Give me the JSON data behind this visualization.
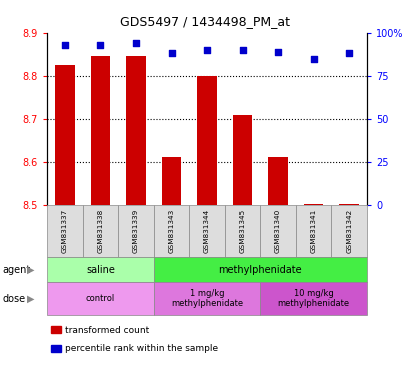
{
  "title": "GDS5497 / 1434498_PM_at",
  "samples": [
    "GSM831337",
    "GSM831338",
    "GSM831339",
    "GSM831343",
    "GSM831344",
    "GSM831345",
    "GSM831340",
    "GSM831341",
    "GSM831342"
  ],
  "red_values": [
    8.825,
    8.845,
    8.845,
    8.612,
    8.8,
    8.71,
    8.612,
    8.503,
    8.503
  ],
  "blue_values": [
    93,
    93,
    94,
    88,
    90,
    90,
    89,
    85,
    88
  ],
  "ylim_left": [
    8.5,
    8.9
  ],
  "ylim_right": [
    0,
    100
  ],
  "yticks_left": [
    8.5,
    8.6,
    8.7,
    8.8,
    8.9
  ],
  "ytick_labels_right": [
    "0",
    "25",
    "50",
    "75",
    "100%"
  ],
  "dotted_lines": [
    8.6,
    8.7,
    8.8
  ],
  "bar_color": "#cc0000",
  "dot_color": "#0000cc",
  "agent_groups": [
    {
      "label": "saline",
      "start": 0,
      "end": 3,
      "color": "#aaffaa"
    },
    {
      "label": "methylphenidate",
      "start": 3,
      "end": 9,
      "color": "#44ee44"
    }
  ],
  "dose_groups": [
    {
      "label": "control",
      "start": 0,
      "end": 3,
      "color": "#ee99ee"
    },
    {
      "label": "1 mg/kg\nmethylphenidate",
      "start": 3,
      "end": 6,
      "color": "#dd77dd"
    },
    {
      "label": "10 mg/kg\nmethylphenidate",
      "start": 6,
      "end": 9,
      "color": "#cc55cc"
    }
  ],
  "legend_items": [
    {
      "label": "transformed count",
      "color": "#cc0000"
    },
    {
      "label": "percentile rank within the sample",
      "color": "#0000cc"
    }
  ],
  "agent_label": "agent",
  "dose_label": "dose",
  "plot_bg": "#ffffff"
}
